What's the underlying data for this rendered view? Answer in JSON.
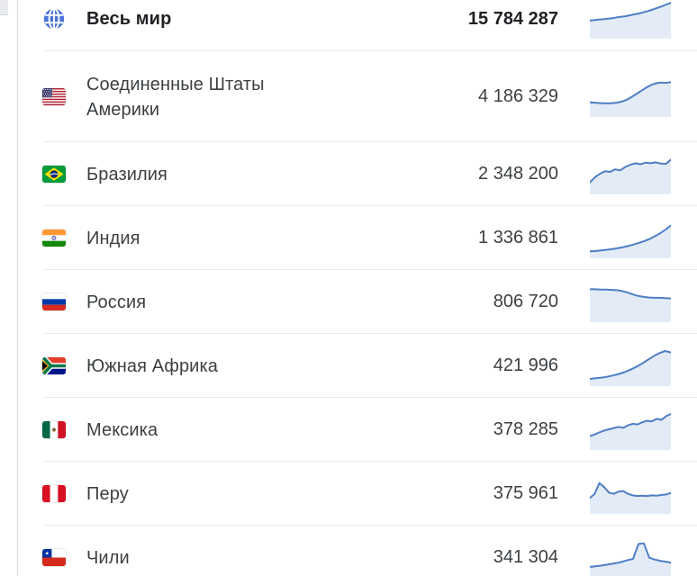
{
  "panel": {
    "title": "covid-country-stats",
    "value_column": "confirmed_cases"
  },
  "colors": {
    "spark_line": "#4f7ec4",
    "spark_fill": "#e3ebf7",
    "divider": "#e8eaed",
    "panel_border": "#dadce0",
    "globe_blue": "#4a74d8",
    "text_primary": "#202124",
    "text_secondary": "#3c4043"
  },
  "table": {
    "rows": [
      {
        "id": "world",
        "label": "Весь мир",
        "value": "15 784 287",
        "icon": "globe-icon",
        "bold": true,
        "spark": [
          0.42,
          0.43,
          0.45,
          0.46,
          0.48,
          0.49,
          0.52,
          0.54,
          0.56,
          0.59,
          0.62,
          0.65,
          0.69,
          0.73,
          0.78,
          0.83,
          0.88,
          0.94,
          1.0
        ]
      },
      {
        "id": "united-states",
        "label": "Соединенные Штаты Америки",
        "value": "4 186 329",
        "icon": "flag-us-icon",
        "bold": false,
        "spark": [
          0.3,
          0.29,
          0.28,
          0.27,
          0.27,
          0.28,
          0.3,
          0.34,
          0.41,
          0.5,
          0.6,
          0.7,
          0.8,
          0.88,
          0.93,
          0.95,
          0.94,
          0.96
        ]
      },
      {
        "id": "brazil",
        "label": "Бразилия",
        "value": "2 348 200",
        "icon": "flag-brazil-icon",
        "bold": false,
        "spark": [
          0.22,
          0.38,
          0.5,
          0.58,
          0.56,
          0.64,
          0.61,
          0.72,
          0.79,
          0.84,
          0.81,
          0.86,
          0.84,
          0.87,
          0.83,
          0.82,
          0.96
        ]
      },
      {
        "id": "india",
        "label": "Индия",
        "value": "1 336 861",
        "icon": "flag-india-icon",
        "bold": false,
        "spark": [
          0.05,
          0.06,
          0.08,
          0.1,
          0.12,
          0.15,
          0.18,
          0.22,
          0.27,
          0.32,
          0.38,
          0.45,
          0.54,
          0.64,
          0.76,
          0.9
        ]
      },
      {
        "id": "russia",
        "label": "Россия",
        "value": "806 720",
        "icon": "flag-russia-icon",
        "bold": false,
        "spark": [
          0.9,
          0.9,
          0.89,
          0.89,
          0.88,
          0.87,
          0.84,
          0.79,
          0.73,
          0.68,
          0.65,
          0.63,
          0.62,
          0.62,
          0.61,
          0.6
        ]
      },
      {
        "id": "south-africa",
        "label": "Южная Африка",
        "value": "421 996",
        "icon": "flag-south-africa-icon",
        "bold": false,
        "spark": [
          0.06,
          0.08,
          0.1,
          0.13,
          0.17,
          0.22,
          0.28,
          0.36,
          0.45,
          0.56,
          0.68,
          0.8,
          0.9,
          0.97,
          0.92
        ]
      },
      {
        "id": "mexico",
        "label": "Мексика",
        "value": "378 285",
        "icon": "flag-mexico-icon",
        "bold": false,
        "spark": [
          0.28,
          0.33,
          0.4,
          0.46,
          0.5,
          0.54,
          0.58,
          0.55,
          0.63,
          0.68,
          0.66,
          0.73,
          0.78,
          0.76,
          0.84,
          0.81,
          0.93,
          1.0
        ]
      },
      {
        "id": "peru",
        "label": "Перу",
        "value": "375 961",
        "icon": "flag-peru-icon",
        "bold": false,
        "spark": [
          0.34,
          0.48,
          0.83,
          0.7,
          0.52,
          0.48,
          0.55,
          0.57,
          0.48,
          0.43,
          0.41,
          0.42,
          0.41,
          0.43,
          0.42,
          0.44,
          0.46,
          0.51
        ]
      },
      {
        "id": "chile",
        "label": "Чили",
        "value": "341 304",
        "icon": "flag-chile-icon",
        "bold": false,
        "spark": [
          0.18,
          0.2,
          0.22,
          0.25,
          0.28,
          0.31,
          0.35,
          0.4,
          0.44,
          0.93,
          0.95,
          0.48,
          0.42,
          0.38,
          0.35,
          0.32
        ]
      }
    ]
  }
}
